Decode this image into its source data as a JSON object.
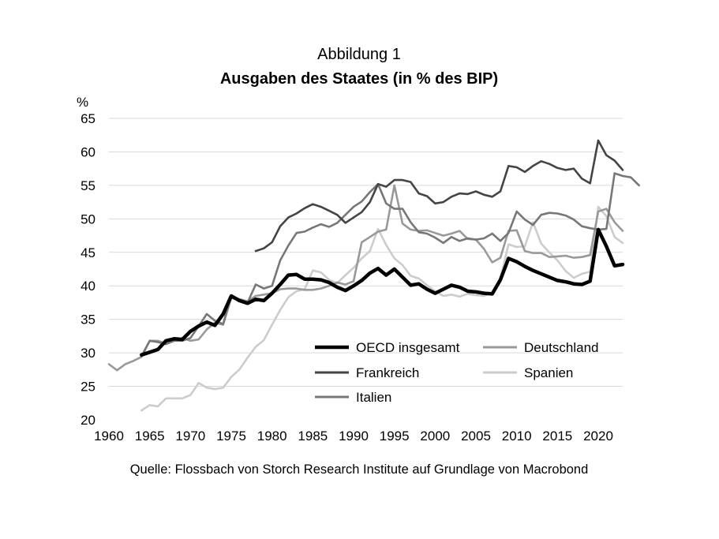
{
  "chart_data": {
    "type": "line",
    "supertitle": "Abbildung 1",
    "title": "Ausgaben des Staates (in % des BIP)",
    "ylabel": "%",
    "source": "Quelle: Flossbach von Storch Research Institute auf Grundlage von Macrobond",
    "xlim": [
      1960,
      2023
    ],
    "ylim": [
      20,
      65
    ],
    "x_ticks": [
      1960,
      1965,
      1970,
      1975,
      1980,
      1985,
      1990,
      1995,
      2000,
      2005,
      2010,
      2015,
      2020
    ],
    "y_ticks": [
      20,
      25,
      30,
      35,
      40,
      45,
      50,
      55,
      60,
      65
    ],
    "grid": "horizontal",
    "legend_position": "lower-right",
    "series": [
      {
        "name": "OECD insgesamt",
        "color": "#000000",
        "start": 1964,
        "values": [
          29.7,
          30.1,
          30.5,
          31.8,
          32.1,
          32.0,
          33.2,
          34.0,
          34.6,
          34.1,
          35.8,
          38.5,
          37.8,
          37.4,
          38.0,
          37.8,
          38.9,
          40.2,
          41.6,
          41.7,
          41.0,
          41.0,
          40.9,
          40.5,
          39.8,
          39.3,
          40.0,
          40.8,
          41.9,
          42.6,
          41.6,
          42.5,
          41.3,
          40.1,
          40.3,
          39.5,
          38.9,
          39.5,
          40.1,
          39.8,
          39.2,
          39.1,
          38.9,
          38.8,
          40.9,
          44.1,
          43.6,
          42.9,
          42.3,
          41.8,
          41.3,
          40.8,
          40.6,
          40.3,
          40.2,
          40.7,
          48.4,
          45.9,
          43.0,
          43.2
        ]
      },
      {
        "name": "Deutschland",
        "color": "#999999",
        "start": 1960,
        "values": [
          28.3,
          27.4,
          28.3,
          28.8,
          29.4,
          31.8,
          31.8,
          31.4,
          31.8,
          32.2,
          31.8,
          32.0,
          33.5,
          34.5,
          34.2,
          38.2,
          38.0,
          37.7,
          38.5,
          38.7,
          38.9,
          39.5,
          39.6,
          39.6,
          39.4,
          39.4,
          39.6,
          40.0,
          40.5,
          40.2,
          40.7,
          46.5,
          47.3,
          48.1,
          48.4,
          55.0,
          49.3,
          48.4,
          48.2,
          48.3,
          47.9,
          47.5,
          47.8,
          48.2,
          47.0,
          46.9,
          45.5,
          43.5,
          44.2,
          48.2,
          48.3,
          45.2,
          44.9,
          44.9,
          44.3,
          44.4,
          44.5,
          44.2,
          44.3,
          44.6,
          51.1,
          51.5,
          49.5,
          48.2
        ]
      },
      {
        "name": "Frankreich",
        "color": "#444444",
        "start": 1978,
        "values": [
          45.2,
          45.6,
          46.5,
          48.9,
          50.2,
          50.8,
          51.6,
          52.2,
          51.8,
          51.2,
          50.6,
          49.4,
          50.2,
          51.0,
          52.5,
          55.2,
          54.8,
          55.8,
          55.8,
          55.5,
          53.8,
          53.4,
          52.3,
          52.5,
          53.3,
          53.8,
          53.7,
          54.1,
          53.6,
          53.3,
          54.1,
          57.9,
          57.7,
          57.0,
          57.9,
          58.6,
          58.2,
          57.6,
          57.3,
          57.5,
          56.0,
          55.3,
          61.7,
          59.5,
          58.7,
          57.3
        ]
      },
      {
        "name": "Spanien",
        "color": "#cccccc",
        "start": 1964,
        "values": [
          21.4,
          22.2,
          22.0,
          23.2,
          23.2,
          23.2,
          23.7,
          25.5,
          24.8,
          24.6,
          24.8,
          26.4,
          27.5,
          29.3,
          30.9,
          31.9,
          34.2,
          36.4,
          38.3,
          39.2,
          39.5,
          42.3,
          42.0,
          40.9,
          40.4,
          41.6,
          42.7,
          44.1,
          45.2,
          48.5,
          46.1,
          44.1,
          43.1,
          41.5,
          41.1,
          40.1,
          39.2,
          38.5,
          38.7,
          38.4,
          38.8,
          38.6,
          38.5,
          39.0,
          41.1,
          46.2,
          45.8,
          45.9,
          49.5,
          46.3,
          45.0,
          43.8,
          42.2,
          41.2,
          41.8,
          42.1,
          51.8,
          50.4,
          47.3,
          46.4
        ]
      },
      {
        "name": "Italien",
        "color": "#777777",
        "start": 1964,
        "values": [
          29.5,
          31.8,
          31.6,
          31.3,
          31.8,
          31.8,
          32.2,
          34.0,
          35.8,
          34.8,
          34.3,
          38.5,
          38.0,
          37.5,
          40.2,
          39.6,
          40.0,
          43.8,
          46.0,
          47.9,
          48.1,
          48.7,
          49.2,
          48.8,
          49.4,
          50.6,
          51.8,
          52.6,
          54.0,
          55.2,
          52.3,
          51.5,
          51.5,
          49.5,
          48.0,
          47.8,
          47.2,
          46.4,
          47.3,
          46.7,
          47.1,
          46.9,
          47.1,
          47.8,
          46.7,
          47.9,
          51.1,
          49.9,
          49.1,
          50.6,
          50.9,
          50.8,
          50.5,
          49.9,
          48.9,
          48.6,
          48.4,
          48.5,
          56.8,
          56.4,
          56.2,
          55.0
        ]
      }
    ]
  }
}
